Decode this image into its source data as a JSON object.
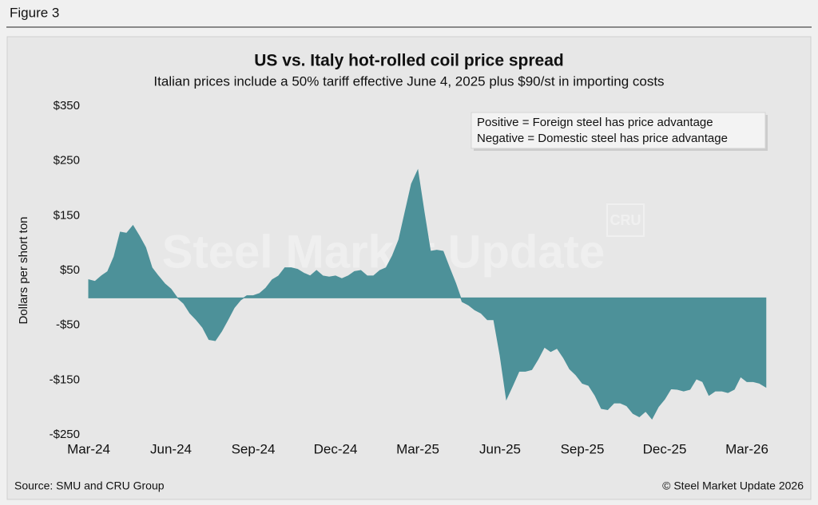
{
  "header": "Figure 3",
  "chart_data": {
    "type": "area",
    "title": "US vs. Italy hot-rolled coil price spread",
    "subtitle": "Italian prices include a 50% tariff effective June 4, 2025 plus $90/st in importing costs",
    "y_label": "Dollars per short ton",
    "annotations": [
      "Positive = Foreign steel has price advantage",
      "Negative = Domestic steel has price advantage"
    ],
    "watermarks": [
      "Steel Market Update",
      "CRU"
    ],
    "color": "#4d9199",
    "categories": [
      "Mar-24",
      null,
      null,
      null,
      null,
      null,
      null,
      null,
      null,
      null,
      null,
      null,
      null,
      "Jun-24",
      null,
      null,
      null,
      null,
      null,
      null,
      null,
      null,
      null,
      null,
      null,
      null,
      "Sep-24",
      null,
      null,
      null,
      null,
      null,
      null,
      null,
      null,
      null,
      null,
      null,
      null,
      "Dec-24",
      null,
      null,
      null,
      null,
      null,
      null,
      null,
      null,
      null,
      null,
      null,
      null,
      "Mar-25",
      null,
      null,
      null,
      null,
      null,
      null,
      null,
      null,
      null,
      null,
      null,
      null,
      "Jun-25",
      null,
      null,
      null,
      null,
      null,
      null,
      null,
      null,
      null,
      null,
      null,
      null,
      "Sep-25",
      null,
      null,
      null,
      null,
      null,
      null,
      null,
      null,
      null,
      null,
      null,
      null,
      "Dec-25",
      null,
      null,
      null,
      null,
      null,
      null,
      null,
      null,
      null,
      null,
      null,
      null,
      "Mar-26",
      null,
      null,
      null
    ],
    "values": [
      33,
      30,
      40,
      48,
      75,
      120,
      118,
      132,
      113,
      92,
      55,
      40,
      26,
      16,
      0,
      -10,
      -28,
      -40,
      -54,
      -76,
      -78,
      -61,
      -40,
      -18,
      -4,
      4,
      4,
      8,
      18,
      33,
      40,
      55,
      55,
      52,
      45,
      40,
      50,
      40,
      38,
      40,
      35,
      40,
      48,
      50,
      40,
      40,
      50,
      55,
      77,
      106,
      157,
      208,
      233,
      157,
      85,
      87,
      85,
      55,
      26,
      -7,
      -13,
      -22,
      -28,
      -40,
      -40,
      -105,
      -185,
      -160,
      -134,
      -134,
      -131,
      -112,
      -90,
      -98,
      -92,
      -109,
      -130,
      -141,
      -156,
      -160,
      -178,
      -202,
      -204,
      -192,
      -192,
      -197,
      -211,
      -217,
      -207,
      -221,
      -199,
      -185,
      -166,
      -167,
      -170,
      -167,
      -148,
      -153,
      -178,
      -170,
      -170,
      -173,
      -167,
      -144,
      -153,
      -153,
      -156,
      -163
    ],
    "ylim": [
      -250,
      350
    ],
    "yticks": [
      {
        "value": 350,
        "label": "$350"
      },
      {
        "value": 250,
        "label": "$250"
      },
      {
        "value": 150,
        "label": "$150"
      },
      {
        "value": 50,
        "label": "$50"
      },
      {
        "value": -50,
        "label": "-$50"
      },
      {
        "value": -150,
        "label": "-$150"
      },
      {
        "value": -250,
        "label": "-$250"
      }
    ],
    "grid": false
  },
  "footer": {
    "source": "Source: SMU and CRU Group",
    "copyright": "© Steel Market Update 2026"
  }
}
